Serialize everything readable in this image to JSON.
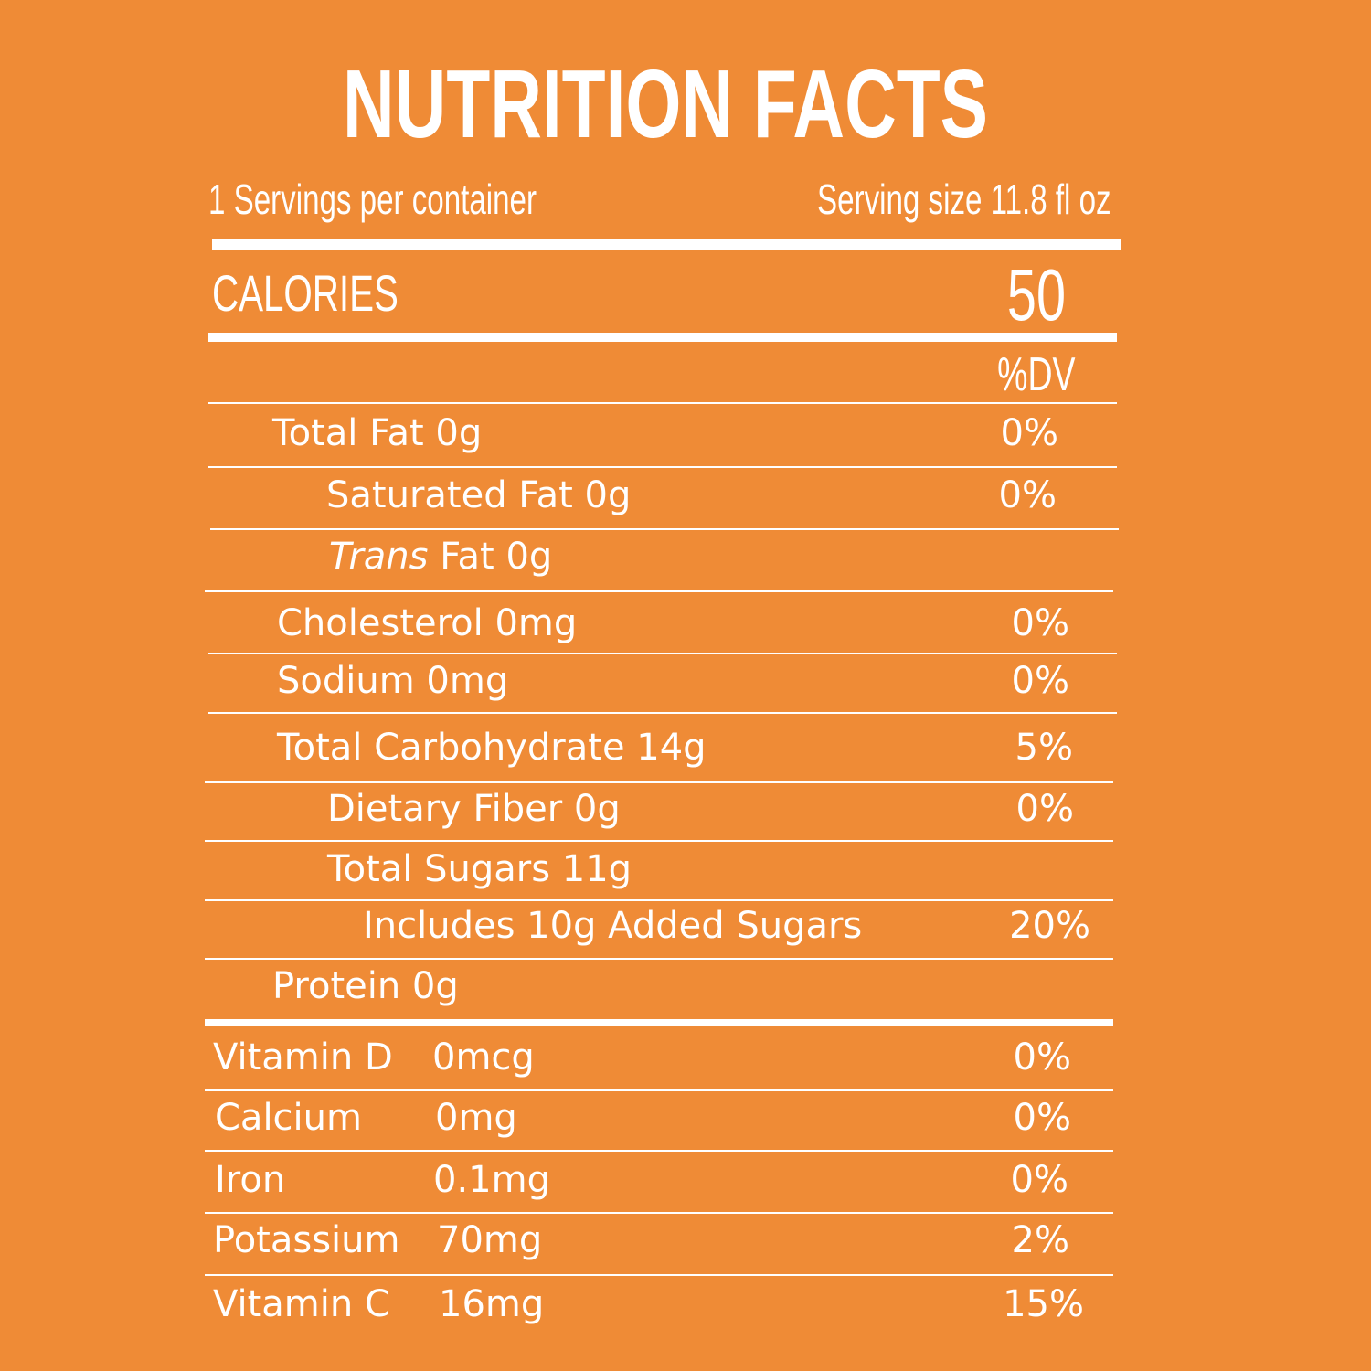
{
  "title": "NUTRITION FACTS",
  "servings_per_container": "1 Servings per container",
  "serving_size": "Serving size 11.8 fl oz",
  "calories": {
    "label": "CALORIES",
    "value": "50"
  },
  "dv_header": "%DV",
  "nutrients": [
    {
      "label": "Total Fat 0g",
      "dv": "0%"
    },
    {
      "label": "Saturated Fat 0g",
      "dv": "0%"
    },
    {
      "label_italic": "Trans",
      "label_rest": " Fat 0g",
      "dv": ""
    },
    {
      "label": "Cholesterol 0mg",
      "dv": "0%"
    },
    {
      "label": "Sodium 0mg",
      "dv": "0%"
    },
    {
      "label": "Total Carbohydrate 14g",
      "dv": "5%"
    },
    {
      "label": "Dietary Fiber 0g",
      "dv": "0%"
    },
    {
      "label": "Total Sugars  11g",
      "dv": ""
    },
    {
      "label": "Includes 10g Added Sugars",
      "dv": "20%"
    },
    {
      "label": "Protein 0g",
      "dv": ""
    }
  ],
  "vitamins": [
    {
      "name": "Vitamin D",
      "amount": "0mcg",
      "dv": "0%"
    },
    {
      "name": "Calcium",
      "amount": "0mg",
      "dv": "0%"
    },
    {
      "name": "Iron",
      "amount": "0.1mg",
      "dv": "0%"
    },
    {
      "name": "Potassium",
      "amount": "70mg",
      "dv": "2%"
    },
    {
      "name": "Vitamin C",
      "amount": "16mg",
      "dv": "15%"
    }
  ],
  "colors": {
    "background": "#EF8B36",
    "text": "#FFFFFF"
  }
}
